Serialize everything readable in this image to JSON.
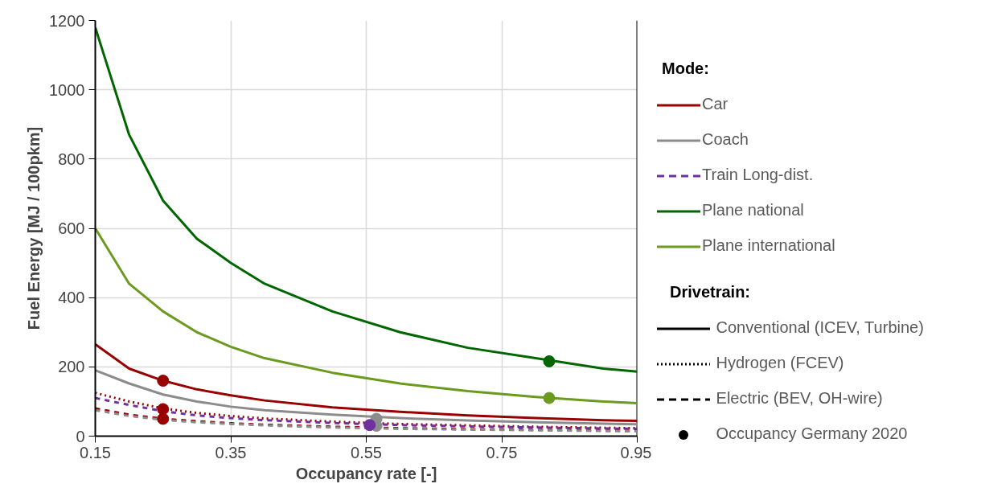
{
  "chart_data": {
    "type": "line",
    "xlabel": "Occupancy rate [-]",
    "ylabel": "Fuel Energy [MJ / 100pkm]",
    "x": [
      0.15,
      0.2,
      0.25,
      0.3,
      0.35,
      0.4,
      0.5,
      0.6,
      0.7,
      0.8,
      0.9,
      0.95
    ],
    "xlim": [
      0.15,
      0.95
    ],
    "xticks": [
      0.15,
      0.35,
      0.55,
      0.75,
      0.95
    ],
    "ylim": [
      0,
      1200
    ],
    "yticks": [
      0,
      200,
      400,
      600,
      800,
      1000,
      1200
    ],
    "grid": true,
    "legend": "right",
    "legend_title": "Mode:",
    "series": [
      {
        "name": "Car",
        "color": "#990000",
        "line_style": "solid",
        "values": [
          265,
          195,
          160,
          135,
          118,
          103,
          83,
          70,
          60,
          52,
          46,
          44
        ]
      },
      {
        "name": "Coach",
        "color": "#8c8c8c",
        "line_style": "solid",
        "values": [
          190,
          152,
          120,
          100,
          85,
          75,
          62,
          52,
          45,
          40,
          36,
          34
        ]
      },
      {
        "color": "#990000",
        "line_style": "dotted",
        "values": [
          125,
          100,
          80,
          67,
          58,
          51,
          42,
          35,
          31,
          27,
          24,
          23
        ]
      },
      {
        "name": "Train Long-dist.",
        "color": "#7030a0",
        "line_style": "dashed",
        "values": [
          110,
          90,
          72,
          60,
          52,
          46,
          38,
          32,
          28,
          25,
          22,
          21
        ]
      },
      {
        "color": "#990000",
        "line_style": "dashed",
        "values": [
          80,
          62,
          50,
          43,
          37,
          33,
          27,
          23,
          20,
          18,
          16,
          15
        ]
      },
      {
        "color": "#8c8c8c",
        "line_style": "dashed",
        "values": [
          75,
          58,
          47,
          40,
          35,
          31,
          25,
          21,
          19,
          17,
          15,
          14
        ]
      },
      {
        "name": "Plane national",
        "color": "#006600",
        "line_style": "solid",
        "values": [
          1180,
          870,
          680,
          570,
          500,
          440,
          360,
          300,
          255,
          225,
          195,
          186
        ]
      },
      {
        "name": "Plane international",
        "color": "#6b9a1f",
        "line_style": "solid",
        "values": [
          600,
          440,
          360,
          300,
          258,
          225,
          183,
          152,
          130,
          113,
          100,
          95
        ]
      },
      {
        "type": "scatter",
        "marker": "circle",
        "color": "#000000",
        "x": [
          0.25,
          0.25,
          0.25,
          0.565,
          0.565,
          0.555,
          0.82,
          0.82
        ],
        "values": [
          160,
          78,
          50,
          50,
          30,
          32,
          216,
          110
        ],
        "colors": [
          "#990000",
          "#990000",
          "#990000",
          "#8c8c8c",
          "#8c8c8c",
          "#7030a0",
          "#006600",
          "#6b9a1f"
        ]
      }
    ],
    "annotations": [
      "Drivetrain:",
      "Conventional (ICEV, Turbine)",
      "Hydrogen (FCEV)",
      "Electric (BEV, OH-wire)",
      "Occupancy Germany 2020"
    ]
  }
}
